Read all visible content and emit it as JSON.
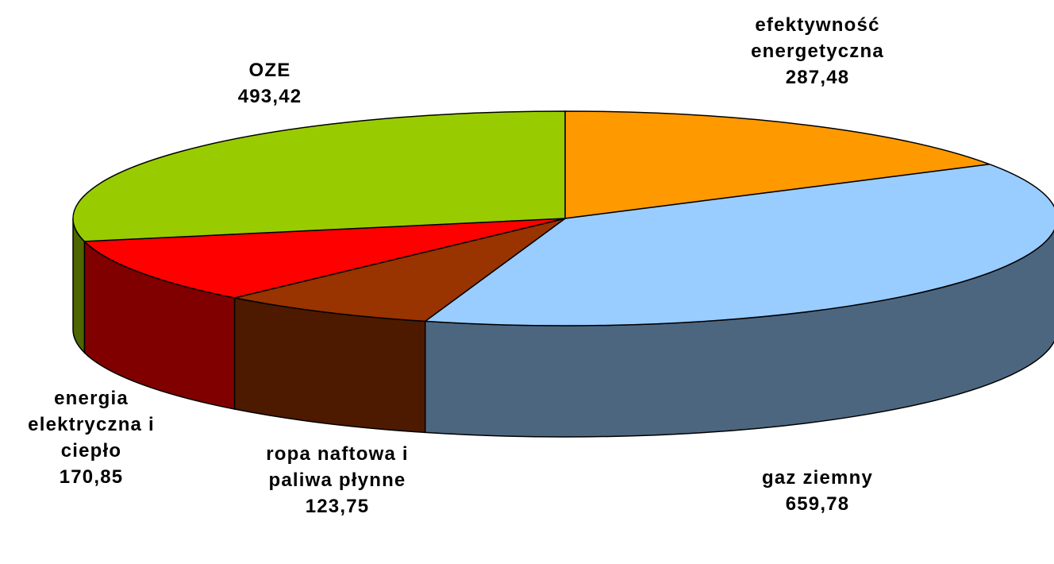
{
  "chart_data": {
    "type": "pie3d",
    "categories": [
      "efektywność energetyczna",
      "gaz ziemny",
      "ropa naftowa i paliwa płynne",
      "energia elektryczna i ciepło",
      "OZE"
    ],
    "values": [
      287.48,
      659.78,
      123.75,
      170.85,
      493.42
    ],
    "value_labels": [
      "287,48",
      "659,78",
      "123,75",
      "170,85",
      "493,42"
    ],
    "colors": [
      "#ff9900",
      "#99ccff",
      "#993300",
      "#ff0000",
      "#99cc00"
    ]
  }
}
